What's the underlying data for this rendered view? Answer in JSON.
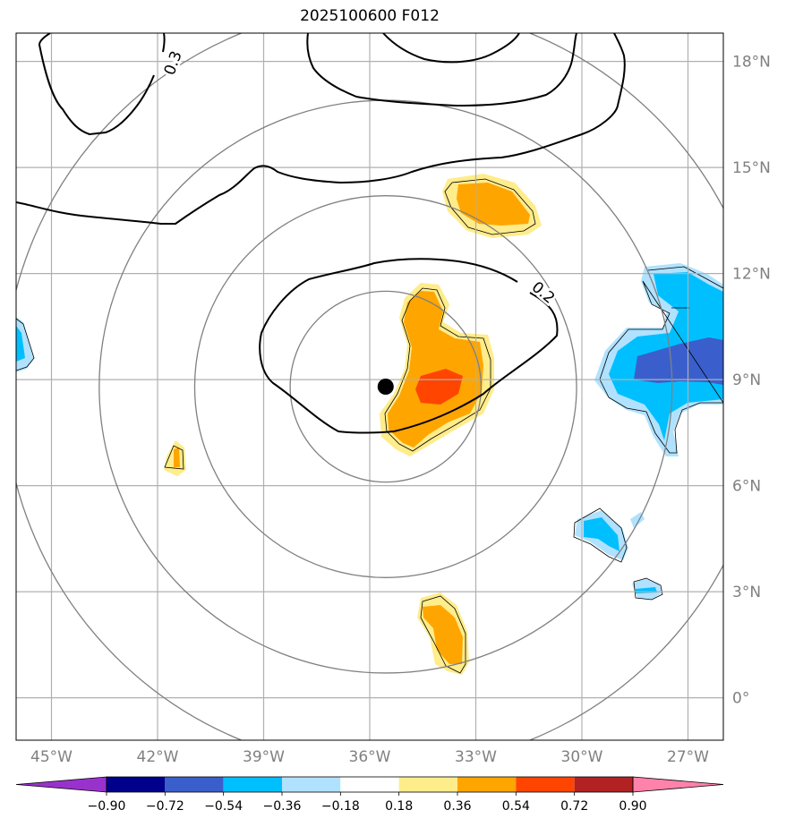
{
  "title": "2025100600 F012",
  "map": {
    "lon_range": [
      -46.0,
      -26.0
    ],
    "lat_range": [
      -1.2,
      18.8
    ],
    "lon_ticks": [
      {
        "value": -45,
        "label": "45°W"
      },
      {
        "value": -42,
        "label": "42°W"
      },
      {
        "value": -39,
        "label": "39°W"
      },
      {
        "value": -36,
        "label": "36°W"
      },
      {
        "value": -33,
        "label": "33°W"
      },
      {
        "value": -30,
        "label": "30°W"
      },
      {
        "value": -27,
        "label": "27°W"
      }
    ],
    "lat_ticks": [
      {
        "value": 0,
        "label": "0°"
      },
      {
        "value": 3,
        "label": "3°N"
      },
      {
        "value": 6,
        "label": "6°N"
      },
      {
        "value": 9,
        "label": "9°N"
      },
      {
        "value": 12,
        "label": "12°N"
      },
      {
        "value": 15,
        "label": "15°N"
      },
      {
        "value": 18,
        "label": "18°N"
      }
    ],
    "storm_center": {
      "lon": -35.55,
      "lat": 8.8
    },
    "range_rings_deg": [
      2.7,
      5.4,
      8.1,
      10.8
    ],
    "contour_labels": [
      {
        "text": "0.3",
        "lon": -41.55,
        "lat": 17.95,
        "rotate": -70
      },
      {
        "text": "0.2",
        "lon": -31.1,
        "lat": 11.45,
        "rotate": 40
      }
    ],
    "tick_color": "#808080",
    "grid_color": "#b0b0b0",
    "ring_color": "#808080"
  },
  "colorbar": {
    "levels": [
      "−0.90",
      "−0.72",
      "−0.54",
      "−0.36",
      "−0.18",
      "0.18",
      "0.36",
      "0.54",
      "0.72",
      "0.90"
    ],
    "colors": [
      "#9932cc",
      "#00008b",
      "#3a5fcd",
      "#00bfff",
      "#b0e2ff",
      "#ffffff",
      "#ffec8b",
      "#ffa500",
      "#ff4500",
      "#b22222",
      "#ff82ab"
    ]
  },
  "fill_colors": {
    "orange": "#ffa500",
    "yellow": "#ffec8b",
    "red": "#ff4500",
    "lightblue": "#b0e2ff",
    "cyan": "#00bfff",
    "blue": "#3a5fcd"
  }
}
